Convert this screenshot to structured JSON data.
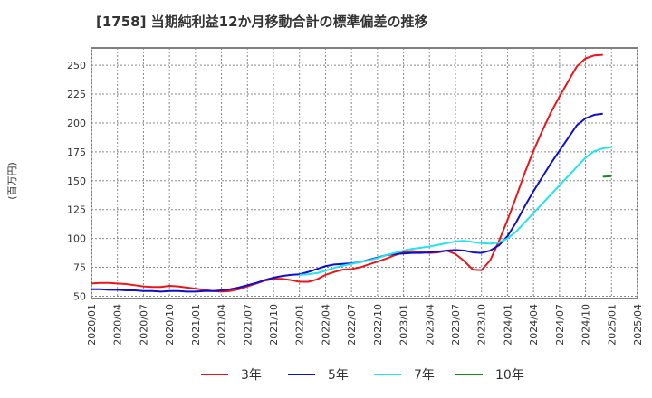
{
  "chart_data": {
    "type": "line",
    "title": "[1758]  当期純利益12か月移動合計の標準偏差の推移",
    "ylabel": "(百万円)",
    "xlabel": "",
    "ylim": [
      48,
      265
    ],
    "yticks": [
      50,
      75,
      100,
      125,
      150,
      175,
      200,
      225,
      250
    ],
    "xlim": [
      "2020-01",
      "2025-04"
    ],
    "xticks": [
      "2020/01",
      "2020/04",
      "2020/07",
      "2020/10",
      "2021/01",
      "2021/04",
      "2021/07",
      "2021/10",
      "2022/01",
      "2022/04",
      "2022/07",
      "2022/10",
      "2023/01",
      "2023/04",
      "2023/07",
      "2023/10",
      "2024/01",
      "2024/04",
      "2024/07",
      "2024/10",
      "2025/01",
      "2025/04"
    ],
    "grid": true,
    "legend_position": "bottom",
    "series": [
      {
        "name": "3年",
        "color": "#e8161b",
        "start": "2020-01",
        "values": [
          61,
          61.5,
          61.5,
          61,
          60.5,
          59.5,
          58.5,
          58,
          58,
          59,
          58.5,
          57.5,
          56.5,
          55.5,
          54.5,
          54,
          54.5,
          56,
          58.5,
          61,
          63.5,
          65,
          65,
          64,
          62.5,
          62.5,
          64.5,
          68.5,
          71,
          73,
          73.5,
          75,
          77.5,
          80,
          82.5,
          85.5,
          88,
          89,
          88.5,
          87.5,
          88,
          89.5,
          86.5,
          80.5,
          73,
          72.5,
          81,
          97.5,
          116,
          136,
          157,
          176,
          193,
          209,
          223,
          236,
          249,
          256,
          258.5,
          259
        ]
      },
      {
        "name": "5年",
        "color": "#1010c8",
        "start": "2020-01",
        "values": [
          56,
          56,
          55.5,
          55.5,
          55,
          55,
          54.5,
          54.5,
          54,
          54.5,
          54.5,
          54,
          54,
          54.5,
          54.5,
          55,
          56,
          57.5,
          59.5,
          61.5,
          64,
          66,
          67.5,
          68.5,
          69,
          71,
          73.5,
          76,
          77.5,
          78,
          78.5,
          79.5,
          81.5,
          83.5,
          85.5,
          86.5,
          87,
          87.5,
          87.5,
          88,
          88.5,
          89.5,
          90,
          89.5,
          88,
          87.5,
          89.5,
          94,
          102,
          114,
          128,
          141,
          153,
          165,
          176,
          187,
          198,
          204,
          207,
          208
        ]
      },
      {
        "name": "7年",
        "color": "#22e3ee",
        "start": "2022-01",
        "values": [
          68.5,
          69,
          70,
          72,
          74.5,
          76.5,
          78,
          79.5,
          81,
          83,
          85.5,
          87.5,
          89.5,
          91,
          92,
          93,
          94.5,
          96,
          97.5,
          98,
          97,
          96,
          95.5,
          96.5,
          100,
          106,
          114,
          122,
          130,
          138,
          146,
          154,
          162,
          170,
          175.5,
          178,
          179
        ]
      },
      {
        "name": "10年",
        "color": "#198a19",
        "start": "2024-12",
        "values": [
          153.5,
          154
        ]
      }
    ]
  }
}
